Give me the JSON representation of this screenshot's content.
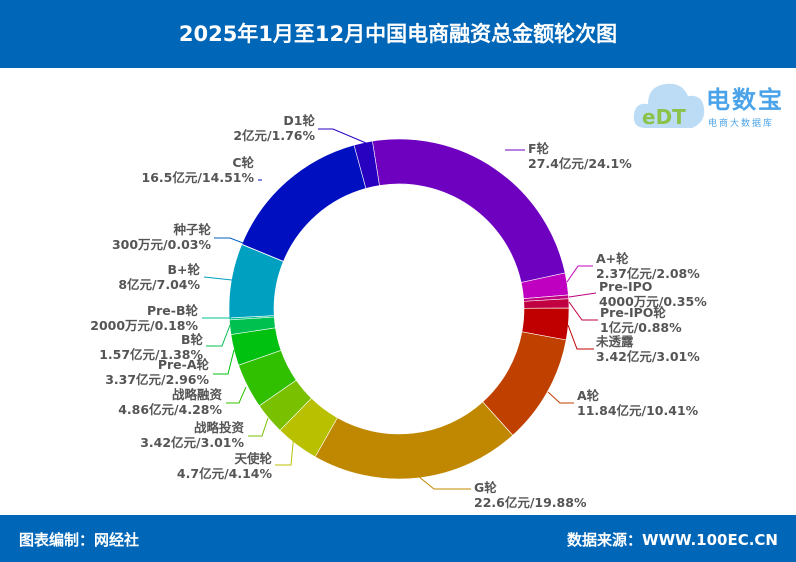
{
  "header": {
    "title": "2025年1月至12月中国电商融资总金额轮次图"
  },
  "logo": {
    "name": "电数宝",
    "subtitle": "电商大数据库",
    "mark": "eDT"
  },
  "footer": {
    "credit": "图表编制：网经社",
    "source": "数据来源：WWW.100EC.CN"
  },
  "chart_data": {
    "type": "pie",
    "donut": true,
    "title": "2025年1月至12月中国电商融资总金额轮次图",
    "unit": "亿元",
    "slices": [
      {
        "name": "F轮",
        "amount": "27.4亿元",
        "percent": 24.1,
        "label": "27.4亿元/24.1%",
        "color": "#6e00c0"
      },
      {
        "name": "A+轮",
        "amount": "2.37亿元",
        "percent": 2.08,
        "label": "2.37亿元/2.08%",
        "color": "#c000c0"
      },
      {
        "name": "Pre-IPO",
        "amount": "4000万元",
        "percent": 0.35,
        "label": "4000万元/0.35%",
        "color": "#c00080"
      },
      {
        "name": "Pre-IPO轮",
        "amount": "1亿元",
        "percent": 0.88,
        "label": "1亿元/0.88%",
        "color": "#c00040"
      },
      {
        "name": "未透露",
        "amount": "3.42亿元",
        "percent": 3.01,
        "label": "3.42亿元/3.01%",
        "color": "#c00000"
      },
      {
        "name": "A轮",
        "amount": "11.84亿元",
        "percent": 10.41,
        "label": "11.84亿元/10.41%",
        "color": "#c04000"
      },
      {
        "name": "G轮",
        "amount": "22.6亿元",
        "percent": 19.88,
        "label": "22.6亿元/19.88%",
        "color": "#c08800"
      },
      {
        "name": "天使轮",
        "amount": "4.7亿元",
        "percent": 4.14,
        "label": "4.7亿元/4.14%",
        "color": "#b8c000"
      },
      {
        "name": "战略投资",
        "amount": "3.42亿元",
        "percent": 3.01,
        "label": "3.42亿元/3.01%",
        "color": "#78c000"
      },
      {
        "name": "战略融资",
        "amount": "4.86亿元",
        "percent": 4.28,
        "label": "4.86亿元/4.28%",
        "color": "#30c000"
      },
      {
        "name": "Pre-A轮",
        "amount": "3.37亿元",
        "percent": 2.96,
        "label": "3.37亿元/2.96%",
        "color": "#00c010"
      },
      {
        "name": "B轮",
        "amount": "1.57亿元",
        "percent": 1.38,
        "label": "1.57亿元/1.38%",
        "color": "#00c050"
      },
      {
        "name": "Pre-B轮",
        "amount": "2000万元",
        "percent": 0.18,
        "label": "2000万元/0.18%",
        "color": "#00c090"
      },
      {
        "name": "B+轮",
        "amount": "8亿元",
        "percent": 7.04,
        "label": "8亿元/7.04%",
        "color": "#00a0c0"
      },
      {
        "name": "种子轮",
        "amount": "300万元",
        "percent": 0.03,
        "label": "300万元/0.03%",
        "color": "#0060c0"
      },
      {
        "name": "C轮",
        "amount": "16.5亿元",
        "percent": 14.51,
        "label": "16.5亿元/14.51%",
        "color": "#0010c0"
      },
      {
        "name": "D1轮",
        "amount": "2亿元",
        "percent": 1.76,
        "label": "2亿元/1.76%",
        "color": "#2800c0"
      }
    ]
  }
}
